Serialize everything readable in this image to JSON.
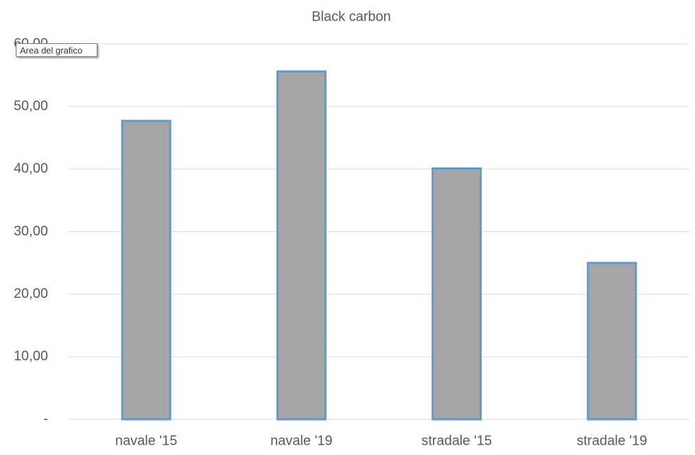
{
  "chart_data": {
    "type": "bar",
    "title": "Black carbon",
    "categories": [
      "navale '15",
      "navale '19",
      "stradale '15",
      "stradale '19"
    ],
    "values": [
      47.7,
      55.6,
      40.1,
      25.0
    ],
    "color": "#a5a5a5",
    "edge_color": "#5b9bd5",
    "ylim": [
      0,
      60
    ],
    "yticks": [
      {
        "value": 0,
        "label": "-"
      },
      {
        "value": 10,
        "label": "10,00"
      },
      {
        "value": 20,
        "label": "20,00"
      },
      {
        "value": 30,
        "label": "30,00"
      },
      {
        "value": 40,
        "label": "40,00"
      },
      {
        "value": 50,
        "label": "50,00"
      },
      {
        "value": 60,
        "label": "60,00"
      }
    ],
    "grid": true
  },
  "tooltip": "Area del grafico"
}
